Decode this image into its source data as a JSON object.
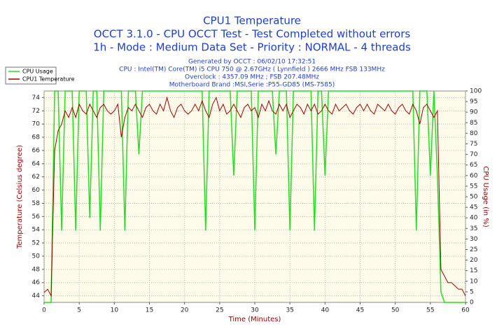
{
  "chart_data": {
    "type": "line",
    "title": "CPU1 Temperature",
    "subtitle": [
      "OCCT 3.1.0 - CPU OCCT Test - Test Completed without errors",
      "1h - Mode : Medium Data Set - Priority : NORMAL - 4 threads"
    ],
    "info": [
      "Generated by OCCT : 06/02/10 17:32:51",
      "CPU : Intel(TM) Core(TM) i5 CPU 750 @ 2.67GHz ( Lynnfield ) 2666 MHz FSB 133MHz",
      "Overclock : 4357.09 MHz ; FSB 207.48MHz",
      "Motherboard Brand :MSI,Serie :P55-GD85 (MS-7585)"
    ],
    "xlabel": "Time (Minutes)",
    "ylabel": "Temperature (Celsius degree)",
    "y2label": "CPU Usage (in %)",
    "xlim": [
      0,
      60
    ],
    "xticks": [
      0,
      5,
      10,
      15,
      20,
      25,
      30,
      35,
      40,
      45,
      50,
      55,
      60
    ],
    "ylim": [
      43,
      75
    ],
    "yticks": [
      44,
      46,
      48,
      50,
      52,
      54,
      56,
      58,
      60,
      62,
      64,
      66,
      68,
      70,
      72,
      74
    ],
    "y2lim": [
      0,
      100
    ],
    "y2ticks": [
      0,
      5,
      10,
      15,
      20,
      25,
      30,
      35,
      40,
      45,
      50,
      55,
      60,
      65,
      70,
      75,
      80,
      85,
      90,
      95,
      100
    ],
    "grid": true,
    "legend": "upper left",
    "x": [
      0,
      0.5,
      1,
      1.5,
      2,
      2.5,
      3,
      3.5,
      4,
      4.5,
      5,
      5.5,
      6,
      6.5,
      7,
      7.5,
      8,
      8.5,
      9,
      9.5,
      10,
      10.5,
      11,
      11.5,
      12,
      12.5,
      13,
      13.5,
      14,
      14.5,
      15,
      15.5,
      16,
      16.5,
      17,
      17.5,
      18,
      18.5,
      19,
      19.5,
      20,
      20.5,
      21,
      21.5,
      22,
      22.5,
      23,
      23.5,
      24,
      24.5,
      25,
      25.5,
      26,
      26.5,
      27,
      27.5,
      28,
      28.5,
      29,
      29.5,
      30,
      30.5,
      31,
      31.5,
      32,
      32.5,
      33,
      33.5,
      34,
      34.5,
      35,
      35.5,
      36,
      36.5,
      37,
      37.5,
      38,
      38.5,
      39,
      39.5,
      40,
      40.5,
      41,
      41.5,
      42,
      42.5,
      43,
      43.5,
      44,
      44.5,
      45,
      45.5,
      46,
      46.5,
      47,
      47.5,
      48,
      48.5,
      49,
      49.5,
      50,
      50.5,
      51,
      51.5,
      52,
      52.5,
      53,
      53.5,
      54,
      54.5,
      55,
      55.5,
      56,
      56.5,
      57,
      57.5,
      58,
      58.5,
      59,
      59.5,
      60
    ],
    "series": [
      {
        "name": "CPU Usage",
        "color": "#22e022",
        "axis": "y2",
        "values": [
          0,
          0,
          0,
          100,
          100,
          34,
          100,
          100,
          100,
          34,
          100,
          100,
          100,
          40,
          100,
          100,
          34,
          100,
          100,
          100,
          100,
          100,
          100,
          34,
          100,
          100,
          100,
          70,
          100,
          100,
          100,
          100,
          100,
          100,
          100,
          100,
          100,
          100,
          100,
          100,
          100,
          100,
          100,
          100,
          100,
          100,
          34,
          100,
          100,
          100,
          100,
          100,
          100,
          100,
          60,
          100,
          100,
          100,
          100,
          100,
          34,
          100,
          100,
          100,
          100,
          100,
          70,
          100,
          100,
          100,
          34,
          100,
          100,
          100,
          100,
          100,
          100,
          34,
          100,
          100,
          60,
          100,
          100,
          100,
          100,
          100,
          100,
          100,
          100,
          100,
          100,
          100,
          100,
          100,
          100,
          100,
          100,
          100,
          100,
          100,
          100,
          100,
          100,
          100,
          100,
          100,
          34,
          100,
          100,
          100,
          60,
          100,
          60,
          5,
          0,
          0,
          0,
          0,
          0,
          0,
          0
        ]
      },
      {
        "name": "CPU1 Temperature",
        "color": "#a00000",
        "values": [
          44.5,
          45,
          44,
          66,
          69,
          70,
          72,
          71,
          72.5,
          71,
          73,
          72,
          71.5,
          73,
          72,
          71,
          72.5,
          73,
          72,
          71.5,
          72,
          73,
          68,
          71,
          72.5,
          72,
          73,
          72,
          71,
          72.5,
          73,
          72,
          71.5,
          73,
          72,
          74,
          72,
          71,
          72.5,
          73,
          72,
          71.5,
          72,
          73,
          72,
          73.5,
          72,
          71,
          73,
          74,
          72,
          73,
          71.5,
          72,
          73,
          72,
          71,
          72.5,
          73,
          72,
          72.5,
          71,
          73,
          72,
          73.5,
          72,
          71.5,
          73,
          72,
          73,
          71,
          72,
          73,
          72.5,
          71.5,
          73,
          72,
          73,
          71.5,
          72,
          73,
          72,
          71.5,
          73,
          72,
          72.5,
          73,
          72,
          71.5,
          72.5,
          73,
          72,
          73,
          72,
          71.5,
          73,
          72.5,
          72,
          73,
          72,
          71.5,
          72.5,
          73,
          72,
          71.5,
          73,
          72,
          70,
          72.5,
          73,
          72,
          71,
          72,
          48,
          47,
          46,
          46,
          45.5,
          45,
          45,
          44
        ]
      }
    ]
  }
}
